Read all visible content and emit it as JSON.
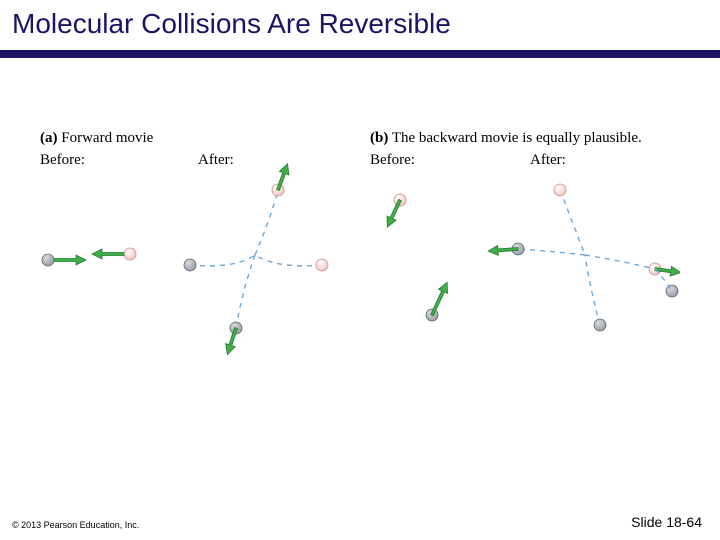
{
  "title": "Molecular Collisions Are Reversible",
  "title_color": "#1b1464",
  "rule_color": "#1b1464",
  "background_color": "#ffffff",
  "panel_a": {
    "tag": "(a)",
    "label": "Forward movie",
    "before": "Before:",
    "after": "After:"
  },
  "panel_b": {
    "tag": "(b)",
    "label": "The backward movie is equally plausible.",
    "before": "Before:",
    "after": "After:"
  },
  "footer": {
    "copyright": "© 2013 Pearson Education, Inc.",
    "slide": "Slide 18-64"
  },
  "colors": {
    "arrow_fill": "#3fae49",
    "arrow_stroke": "#2a7a33",
    "path_dash": "#6fa8d8",
    "ball_dark_fill": "#9aa0a6",
    "ball_dark_hi": "#d8dbde",
    "ball_dark_stroke": "#5f6368",
    "ball_light_fill": "#f4c7c3",
    "ball_light_hi": "#ffffff",
    "ball_light_stroke": "#c88f8a",
    "text_color": "#000000"
  },
  "geom": {
    "ball_r": 6,
    "arrow_len": 30,
    "arrow_w": 3,
    "arrow_head_w": 10,
    "arrow_head_l": 10,
    "dash": "5,5",
    "path_width": 1.4
  }
}
